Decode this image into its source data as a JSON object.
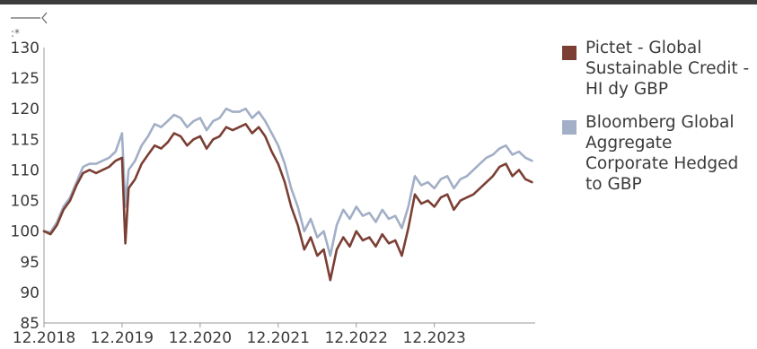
{
  "chart_data": {
    "type": "line",
    "title": "",
    "xlabel": "",
    "ylabel": "",
    "corner_mark": ":*",
    "ylim": [
      85,
      130
    ],
    "y_ticks": [
      85,
      90,
      95,
      100,
      105,
      110,
      115,
      120,
      125,
      130
    ],
    "x_tick_labels": [
      "12.2018",
      "12.2019",
      "12.2020",
      "12.2021",
      "12.2022",
      "12.2023"
    ],
    "x_tick_positions": [
      0,
      12,
      24,
      36,
      48,
      60
    ],
    "xlim": [
      0,
      75.5
    ],
    "grid": false,
    "legend_position": "right",
    "series": [
      {
        "name": "Pictet - Global Sustainable Credit - HI dy GBP",
        "color": "#7b3f34",
        "x": [
          0,
          1,
          2,
          3,
          4,
          5,
          6,
          7,
          8,
          9,
          10,
          11,
          12,
          12.5,
          13,
          14,
          15,
          16,
          17,
          18,
          19,
          20,
          21,
          22,
          23,
          24,
          25,
          26,
          27,
          28,
          29,
          30,
          31,
          32,
          33,
          34,
          35,
          36,
          37,
          38,
          39,
          40,
          41,
          42,
          43,
          44,
          45,
          46,
          47,
          48,
          49,
          50,
          51,
          52,
          53,
          54,
          55,
          56,
          57,
          58,
          59,
          60,
          61,
          62,
          63,
          64,
          65,
          66,
          67,
          68,
          69,
          70,
          71,
          72,
          73,
          74,
          75
        ],
        "y": [
          100,
          99.5,
          101,
          103.5,
          105,
          107.5,
          109.5,
          110,
          109.5,
          110,
          110.5,
          111.5,
          112,
          98,
          107,
          108.5,
          111,
          112.5,
          114,
          113.5,
          114.5,
          116,
          115.5,
          114,
          115,
          115.5,
          113.5,
          115,
          115.5,
          117,
          116.5,
          117,
          117.5,
          116,
          117,
          115.5,
          113,
          111,
          108,
          104,
          101,
          97,
          99,
          96,
          97,
          92,
          97,
          99,
          97.5,
          100,
          98.5,
          99,
          97.5,
          99.5,
          98,
          98.5,
          96,
          100.5,
          106,
          104.5,
          105,
          104,
          105.5,
          106,
          103.5,
          105,
          105.5,
          106,
          107,
          108,
          109,
          110.5,
          111,
          109,
          110,
          108.5,
          108
        ]
      },
      {
        "name": "Bloomberg Global Aggregate Corporate Hedged to GBP",
        "color": "#a2afc6",
        "x": [
          0,
          1,
          2,
          3,
          4,
          5,
          6,
          7,
          8,
          9,
          10,
          11,
          12,
          12.5,
          13,
          14,
          15,
          16,
          17,
          18,
          19,
          20,
          21,
          22,
          23,
          24,
          25,
          26,
          27,
          28,
          29,
          30,
          31,
          32,
          33,
          34,
          35,
          36,
          37,
          38,
          39,
          40,
          41,
          42,
          43,
          44,
          45,
          46,
          47,
          48,
          49,
          50,
          51,
          52,
          53,
          54,
          55,
          56,
          57,
          58,
          59,
          60,
          61,
          62,
          63,
          64,
          65,
          66,
          67,
          68,
          69,
          70,
          71,
          72,
          73,
          74,
          75
        ],
        "y": [
          100,
          99.8,
          101.5,
          104,
          105.5,
          108,
          110.5,
          111,
          111,
          111.5,
          112,
          113,
          116,
          104,
          110,
          111.5,
          114,
          115.5,
          117.5,
          117,
          118,
          119,
          118.5,
          117,
          118,
          118.5,
          116.5,
          118,
          118.5,
          120,
          119.5,
          119.5,
          120,
          118.5,
          119.5,
          118,
          116,
          114,
          111,
          107,
          104,
          100,
          102,
          99,
          100,
          96,
          101,
          103.5,
          102,
          104,
          102.5,
          103,
          101.5,
          103.5,
          102,
          102.5,
          100.5,
          104,
          109,
          107.5,
          108,
          107,
          108.5,
          109,
          107,
          108.5,
          109,
          110,
          111,
          112,
          112.5,
          113.5,
          114,
          112.5,
          113,
          112,
          111.5
        ]
      }
    ]
  }
}
